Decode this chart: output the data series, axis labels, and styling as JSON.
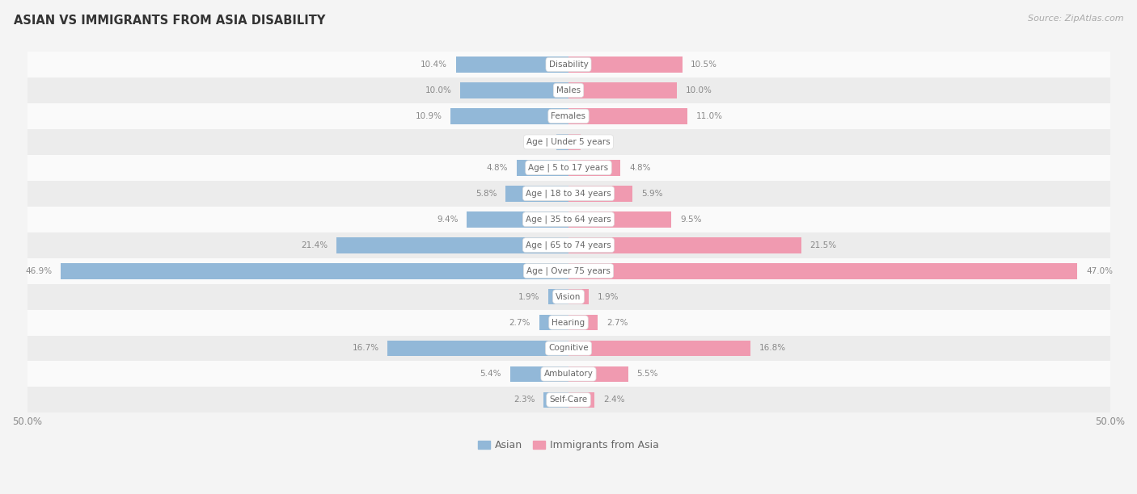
{
  "title": "ASIAN VS IMMIGRANTS FROM ASIA DISABILITY",
  "source": "Source: ZipAtlas.com",
  "categories": [
    "Disability",
    "Males",
    "Females",
    "Age | Under 5 years",
    "Age | 5 to 17 years",
    "Age | 18 to 34 years",
    "Age | 35 to 64 years",
    "Age | 65 to 74 years",
    "Age | Over 75 years",
    "Vision",
    "Hearing",
    "Cognitive",
    "Ambulatory",
    "Self-Care"
  ],
  "asian_values": [
    10.4,
    10.0,
    10.9,
    1.1,
    4.8,
    5.8,
    9.4,
    21.4,
    46.9,
    1.9,
    2.7,
    16.7,
    5.4,
    2.3
  ],
  "immigrant_values": [
    10.5,
    10.0,
    11.0,
    1.1,
    4.8,
    5.9,
    9.5,
    21.5,
    47.0,
    1.9,
    2.7,
    16.8,
    5.5,
    2.4
  ],
  "asian_color": "#92b8d8",
  "immigrant_color": "#f09ab0",
  "max_value": 50.0,
  "background_color": "#f4f4f4",
  "row_bg_light": "#fafafa",
  "row_bg_dark": "#ececec",
  "bar_height": 0.62,
  "legend_labels": [
    "Asian",
    "Immigrants from Asia"
  ],
  "value_color": "#888888",
  "label_color": "#666666",
  "title_color": "#333333",
  "source_color": "#aaaaaa"
}
